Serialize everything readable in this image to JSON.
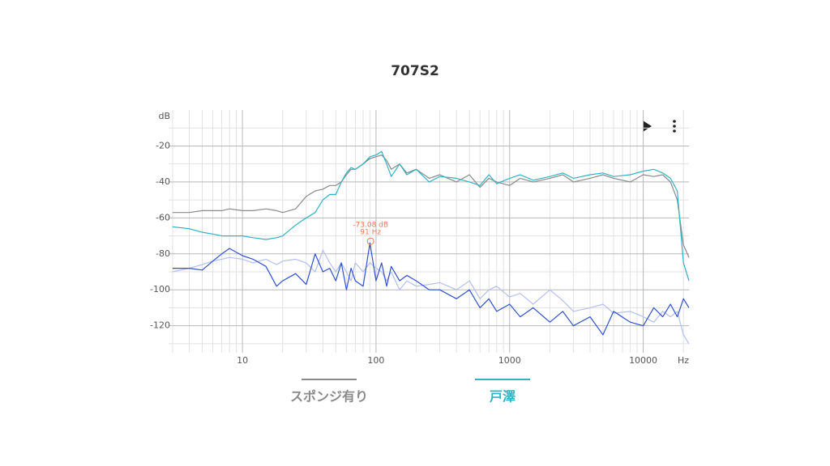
{
  "chart_data": {
    "type": "line",
    "title": "707S2",
    "y_unit": "dB",
    "x_unit": "Hz",
    "log_x": true,
    "grid": true,
    "xlim": [
      2.8,
      22000
    ],
    "ylim": [
      -135,
      0
    ],
    "xticks": [
      10,
      100,
      1000,
      10000
    ],
    "xminorticks": [
      3,
      4,
      5,
      6,
      7,
      8,
      9,
      20,
      30,
      40,
      50,
      60,
      70,
      80,
      90,
      200,
      300,
      400,
      500,
      600,
      700,
      800,
      900,
      2000,
      3000,
      4000,
      5000,
      6000,
      7000,
      8000,
      9000,
      20000
    ],
    "yticks": [
      -20,
      -40,
      -60,
      -80,
      -100,
      -120
    ],
    "yminorticks": [
      -10,
      -30,
      -50,
      -70,
      -90,
      -110,
      -130
    ],
    "x": [
      3,
      4,
      5,
      6,
      7,
      8,
      10,
      12,
      15,
      18,
      20,
      25,
      30,
      35,
      40,
      45,
      50,
      55,
      60,
      65,
      70,
      80,
      90,
      100,
      110,
      120,
      130,
      150,
      170,
      200,
      250,
      300,
      400,
      500,
      600,
      700,
      800,
      1000,
      1200,
      1500,
      2000,
      2500,
      3000,
      4000,
      5000,
      6000,
      8000,
      10000,
      12000,
      14000,
      16000,
      18000,
      20000,
      22000
    ],
    "series": [
      {
        "name": "スポンジ有り",
        "color": "#8a8a8a",
        "values": [
          -57,
          -57,
          -56,
          -56,
          -56,
          -55,
          -56,
          -56,
          -55,
          -56,
          -57,
          -55,
          -48,
          -45,
          -44,
          -42,
          -42,
          -40,
          -36,
          -33,
          -33,
          -30,
          -27,
          -26,
          -25,
          -28,
          -33,
          -30,
          -35,
          -33,
          -38,
          -36,
          -40,
          -36,
          -43,
          -38,
          -40,
          -42,
          -38,
          -40,
          -38,
          -36,
          -40,
          -38,
          -36,
          -38,
          -40,
          -36,
          -37,
          -36,
          -40,
          -50,
          -75,
          -82
        ]
      },
      {
        "name": "戸澤",
        "color": "#2fb3c4",
        "values": [
          -65,
          -66,
          -68,
          -69,
          -70,
          -70,
          -70,
          -71,
          -72,
          -71,
          -70,
          -64,
          -60,
          -57,
          -50,
          -47,
          -47,
          -40,
          -35,
          -32,
          -33,
          -30,
          -26,
          -25,
          -23,
          -30,
          -37,
          -30,
          -36,
          -33,
          -40,
          -37,
          -38,
          -40,
          -42,
          -36,
          -41,
          -38,
          -36,
          -39,
          -37,
          -35,
          -38,
          -36,
          -35,
          -37,
          -36,
          -34,
          -33,
          -35,
          -38,
          -45,
          -85,
          -95
        ]
      }
    ],
    "distortion": [
      {
        "color": "#b4bff0",
        "values": [
          -90,
          -88,
          -86,
          -84,
          -83,
          -82,
          -83,
          -85,
          -83,
          -86,
          -84,
          -83,
          -85,
          -90,
          -78,
          -85,
          -90,
          -85,
          -90,
          -95,
          -85,
          -90,
          -85,
          -88,
          -90,
          -95,
          -90,
          -100,
          -95,
          -98,
          -97,
          -96,
          -100,
          -95,
          -105,
          -100,
          -98,
          -104,
          -102,
          -108,
          -100,
          -106,
          -112,
          -110,
          -108,
          -113,
          -112,
          -115,
          -118,
          -112,
          -115,
          -112,
          -125,
          -130
        ]
      },
      {
        "color": "#2f50d0",
        "values": [
          -88,
          -88,
          -89,
          -84,
          -80,
          -77,
          -81,
          -83,
          -87,
          -98,
          -95,
          -91,
          -97,
          -80,
          -90,
          -88,
          -95,
          -85,
          -100,
          -88,
          -95,
          -98,
          -74,
          -95,
          -85,
          -98,
          -87,
          -95,
          -92,
          -95,
          -100,
          -100,
          -105,
          -100,
          -110,
          -105,
          -112,
          -108,
          -115,
          -110,
          -118,
          -112,
          -120,
          -115,
          -125,
          -112,
          -118,
          -120,
          -110,
          -115,
          -108,
          -115,
          -105,
          -110
        ]
      }
    ],
    "annotation": {
      "x": 91,
      "y": -73,
      "color": "#e8785a",
      "lines": [
        "-73.08 dB",
        "91 Hz"
      ]
    }
  }
}
